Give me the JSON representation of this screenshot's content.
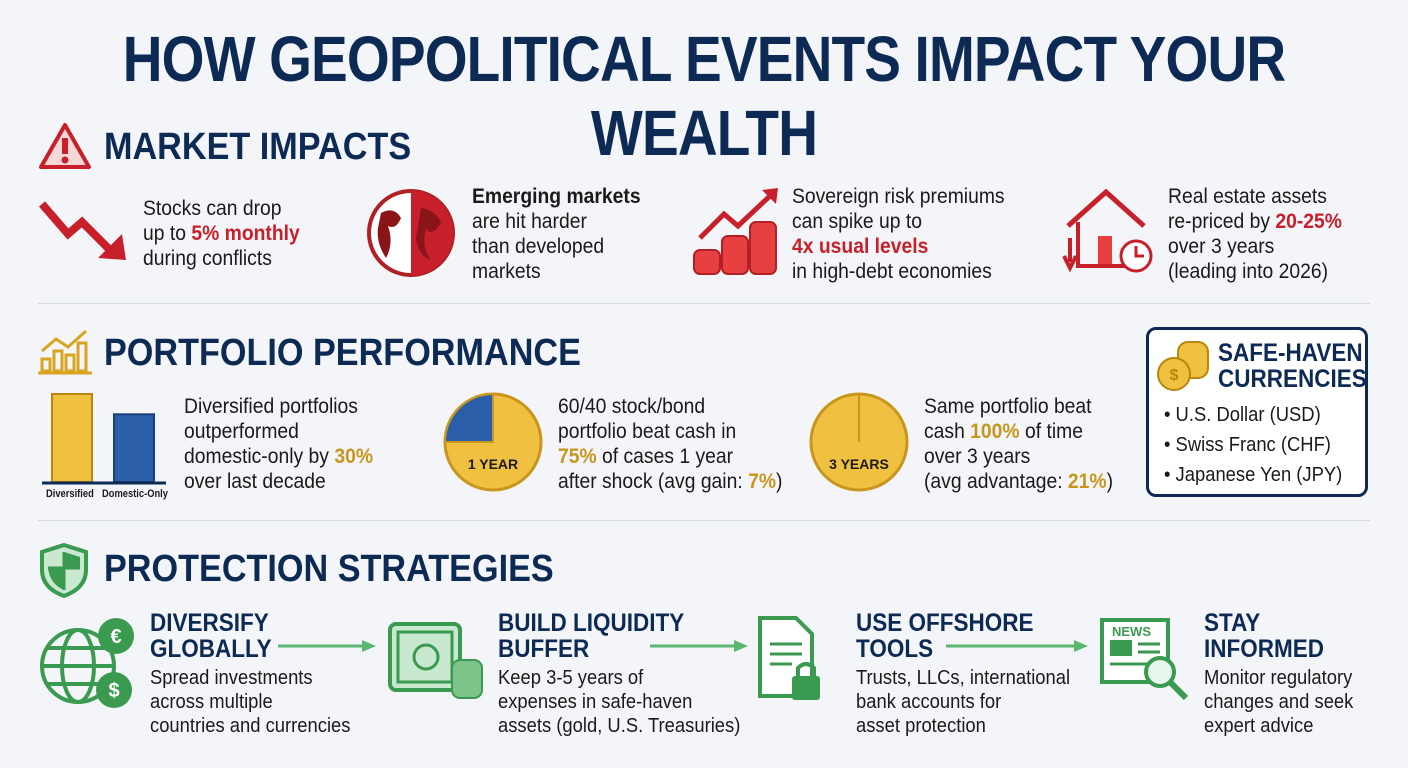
{
  "title": "HOW GEOPOLITICAL EVENTS IMPACT YOUR WEALTH",
  "market": {
    "heading": "MARKET IMPACTS",
    "items": [
      {
        "icon": "down-arrow-icon",
        "pre": "Stocks can drop",
        "line2a": "up to ",
        "hl": "5% monthly",
        "post": "during conflicts"
      },
      {
        "icon": "globe-icon",
        "bold": "Emerging markets",
        "l2": "are hit harder",
        "l3": "than developed",
        "l4": "markets"
      },
      {
        "icon": "coins-up-icon",
        "l1": "Sovereign risk premiums",
        "l2": "can spike up to",
        "hl": "4x usual levels",
        "l4": "in high-debt economies"
      },
      {
        "icon": "house-down-icon",
        "l1": "Real estate assets",
        "l2a": "re-priced by ",
        "hl": "20-25%",
        "l3": "over 3 years",
        "l4": "(leading into 2026)"
      }
    ]
  },
  "portfolio": {
    "heading": "PORTFOLIO PERFORMANCE",
    "bar": {
      "categories": [
        "Diversified",
        "Domestic-Only"
      ],
      "values": [
        1.3,
        1.0
      ],
      "colors": [
        "#f0c040",
        "#2a5ea8"
      ]
    },
    "t1": {
      "l1": "Diversified portfolios",
      "l2": "outperformed",
      "l3a": "domestic-only by ",
      "hl": "30%",
      "l4": "over last decade"
    },
    "pie1": {
      "label": "1 YEAR",
      "value": 75
    },
    "t2": {
      "l1": "60/40 stock/bond",
      "l2": "portfolio beat cash in",
      "hl": "75%",
      "l3b": " of cases 1 year",
      "l4a": "after shock (avg gain: ",
      "hl2": "7%",
      "l4c": ")"
    },
    "pie2": {
      "label": "3 YEARS",
      "value": 100
    },
    "t3": {
      "l1": "Same portfolio beat",
      "l2a": "cash ",
      "hl": "100%",
      "l2c": " of time",
      "l3": "over 3 years",
      "l4a": "(avg advantage: ",
      "hl2": "21%",
      "l4c": ")"
    },
    "safe": {
      "heading1": "SAFE-HAVEN",
      "heading2": "CURRENCIES",
      "items": [
        "• U.S. Dollar (USD)",
        "• Swiss Franc (CHF)",
        "• Japanese Yen (JPY)"
      ]
    }
  },
  "protection": {
    "heading": "PROTECTION STRATEGIES",
    "items": [
      {
        "h1": "DIVERSIFY",
        "h2": "GLOBALLY",
        "d": [
          "Spread investments",
          "across multiple",
          "countries and currencies"
        ]
      },
      {
        "h1": "BUILD LIQUIDITY",
        "h2": "BUFFER",
        "d": [
          "Keep 3-5 years of",
          "expenses in safe-haven",
          "assets (gold, U.S. Treasuries)"
        ]
      },
      {
        "h1": "USE OFFSHORE",
        "h2": "TOOLS",
        "d": [
          "Trusts, LLCs, international",
          "bank accounts for",
          "asset protection"
        ]
      },
      {
        "h1": "STAY",
        "h2": "INFORMED",
        "d": [
          "Monitor regulatory",
          "changes and seek",
          "expert advice"
        ]
      }
    ],
    "news_label": "NEWS"
  },
  "colors": {
    "navy": "#0d2a55",
    "red": "#c8202a",
    "gold": "#f0c040",
    "blue": "#2a5ea8",
    "green": "#3a9a50"
  }
}
